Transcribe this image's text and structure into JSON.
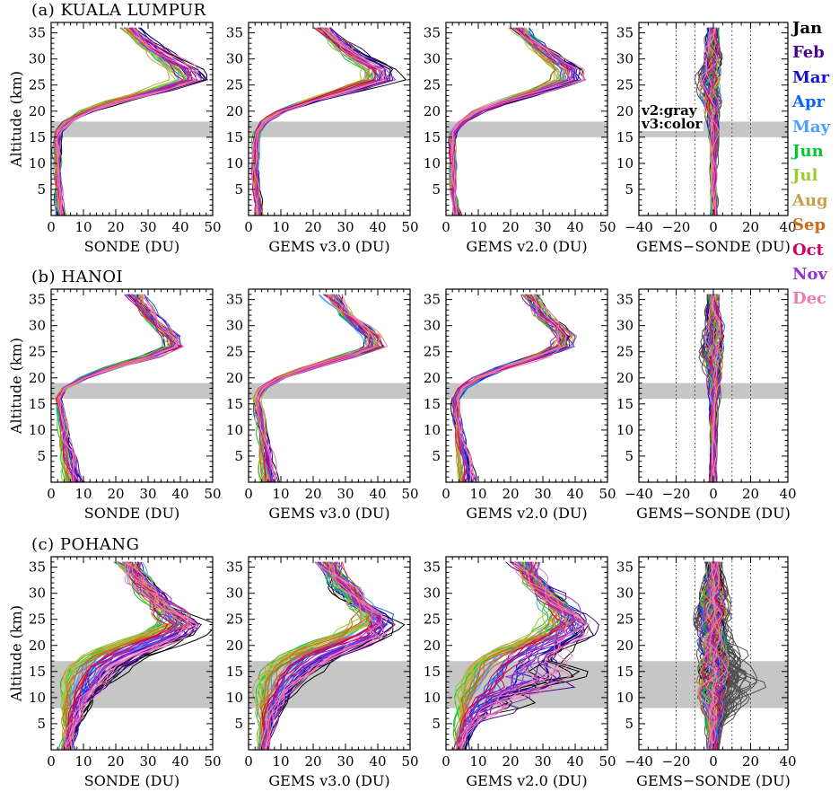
{
  "chart_data": {
    "type": "line",
    "description": "Monthly ozone partial-column profiles (DU) vs altitude from ozonesonde and GEMS v3.0/v2.0 retrievals, plus GEMS minus SONDE differences, at three stations.",
    "axes": {
      "y": {
        "label": "Altitude (km)",
        "range": [
          0,
          37
        ],
        "ticks": [
          5,
          10,
          15,
          20,
          25,
          30,
          35
        ],
        "minor_step": 1
      },
      "x_value": {
        "range": [
          0,
          50
        ],
        "ticks": [
          0,
          10,
          20,
          30,
          40,
          50
        ],
        "minor_step": 2
      },
      "x_diff": {
        "range": [
          -40,
          40
        ],
        "ticks": [
          -40,
          -20,
          0,
          20,
          40
        ],
        "minor_step": 5,
        "dotted_lines": [
          -20,
          -10,
          10,
          20
        ],
        "solid_line": 0
      }
    },
    "panel_xlabels": [
      "SONDE (DU)",
      "GEMS v3.0 (DU)",
      "GEMS v2.0 (DU)",
      "GEMS−SONDE (DU)"
    ],
    "annotation": {
      "v2": "v2:gray",
      "v3": "v3:color"
    },
    "diff_gray_color": "#4f4f4f",
    "gray_band_color": "#c6c6c6",
    "months": [
      {
        "name": "Jan",
        "color": "#000000"
      },
      {
        "name": "Feb",
        "color": "#4b0096"
      },
      {
        "name": "Mar",
        "color": "#1414c8"
      },
      {
        "name": "Apr",
        "color": "#0a64ff"
      },
      {
        "name": "May",
        "color": "#4d9fff"
      },
      {
        "name": "Jun",
        "color": "#00c832"
      },
      {
        "name": "Jul",
        "color": "#9acd32"
      },
      {
        "name": "Aug",
        "color": "#c8a048"
      },
      {
        "name": "Sep",
        "color": "#cd6818"
      },
      {
        "name": "Oct",
        "color": "#cc0066"
      },
      {
        "name": "Nov",
        "color": "#9932cc"
      },
      {
        "name": "Dec",
        "color": "#f478b4"
      }
    ],
    "stations": [
      {
        "label": "(a) KUALA LUMPUR",
        "gray_band_km": [
          15,
          18
        ],
        "altitudes_km": [
          0,
          2,
          4,
          6,
          8,
          10,
          12,
          14,
          16,
          18,
          20,
          22,
          24,
          26,
          28,
          30,
          32,
          34,
          36
        ],
        "profiles_du": {
          "sonde": [
            3,
            2.5,
            2.2,
            2,
            2,
            1.8,
            1.8,
            1.5,
            2,
            5,
            11,
            21,
            33,
            43,
            41,
            36,
            31,
            27,
            24
          ],
          "gems_v3": [
            3.5,
            3,
            2.5,
            2.2,
            2,
            2,
            2,
            2,
            2.5,
            5,
            10,
            19,
            30,
            40,
            39,
            34,
            30,
            26,
            23
          ],
          "gems_v2": [
            3.5,
            3,
            2.5,
            2.2,
            2,
            2,
            2,
            2,
            2.5,
            5,
            10,
            19,
            29,
            38,
            38,
            34,
            30,
            26,
            23
          ]
        },
        "lines_per_month": 3,
        "style": {
          "rel_noise": 0.05,
          "abs_noise": 0.9,
          "peak_abs_noise": 2.2,
          "seasonal_amp": 0.08,
          "seasonal_center_km": 25,
          "seasonal_width_km": 8,
          "diff_color_amp": 4.0,
          "diff_gray_amp": 4.5,
          "diff_gray_bias": 0,
          "v2_chaos": 0
        }
      },
      {
        "label": "(b) HANOI",
        "gray_band_km": [
          16,
          19
        ],
        "altitudes_km": [
          0,
          2,
          4,
          6,
          8,
          10,
          12,
          14,
          16,
          18,
          20,
          22,
          24,
          26,
          28,
          30,
          32,
          34,
          36
        ],
        "profiles_du": {
          "sonde": [
            7,
            6,
            5.5,
            5,
            4.5,
            4,
            3.5,
            3,
            2.2,
            4,
            10,
            19,
            30,
            38,
            37,
            33,
            30,
            28,
            26
          ],
          "gems_v3": [
            6.5,
            6,
            5.5,
            5,
            4.5,
            4,
            3.5,
            3,
            2.8,
            4.5,
            10,
            19,
            30,
            39,
            38,
            34,
            30,
            28,
            26
          ],
          "gems_v2": [
            6.5,
            6,
            5.5,
            5,
            4.5,
            4,
            3.5,
            3.2,
            3,
            5,
            10,
            18,
            28,
            36,
            37,
            34,
            30,
            28,
            26
          ]
        },
        "lines_per_month": 3,
        "style": {
          "rel_noise": 0.06,
          "abs_noise": 1.0,
          "peak_abs_noise": 2.4,
          "seasonal_amp": 0.28,
          "seasonal_center_km": 2,
          "seasonal_width_km": 5,
          "diff_color_amp": 4.0,
          "diff_gray_amp": 4.5,
          "diff_gray_bias": 0,
          "v2_chaos": 0
        }
      },
      {
        "label": "(c) POHANG",
        "gray_band_km": [
          8,
          17
        ],
        "altitudes_km": [
          0,
          2,
          4,
          6,
          8,
          10,
          12,
          14,
          16,
          18,
          20,
          22,
          24,
          26,
          28,
          30,
          32,
          34,
          36
        ],
        "profiles_du": {
          "sonde": [
            5,
            5.5,
            6,
            6.5,
            7,
            8,
            9.5,
            11.5,
            14,
            19,
            27,
            35,
            40,
            38,
            34,
            31,
            28,
            26,
            24
          ],
          "gems_v3": [
            4.5,
            5,
            5.5,
            6,
            6.5,
            7.5,
            9,
            11,
            14,
            19,
            27,
            35,
            39,
            38,
            34,
            31,
            28,
            26,
            24
          ],
          "gems_v2": [
            4.5,
            5,
            5.5,
            6.5,
            8,
            10,
            13,
            16,
            18,
            22,
            28,
            35,
            38,
            37,
            34,
            31,
            28,
            26,
            24
          ]
        },
        "lines_per_month": 5,
        "style": {
          "rel_noise": 0.09,
          "abs_noise": 1.3,
          "peak_abs_noise": 2.8,
          "seasonal_amp": 0.6,
          "seasonal_center_km": 13,
          "seasonal_width_km": 6,
          "diff_color_amp": 5.0,
          "diff_gray_amp": 6.5,
          "diff_gray_bias": 16,
          "v2_chaos": 16
        }
      }
    ]
  }
}
